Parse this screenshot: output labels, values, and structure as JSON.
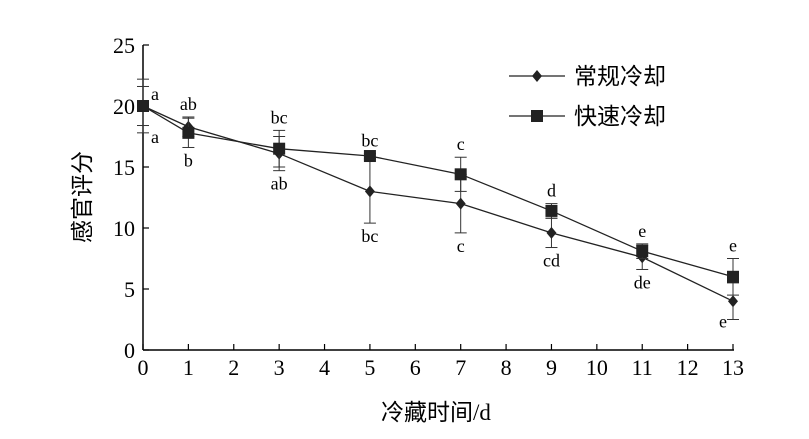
{
  "chart_data": {
    "type": "line",
    "title": "",
    "xlabel": "冷藏时间/d",
    "ylabel": "感官评分",
    "xlim": [
      0,
      13
    ],
    "ylim": [
      0,
      25
    ],
    "xticks": [
      0,
      1,
      2,
      3,
      4,
      5,
      6,
      7,
      8,
      9,
      10,
      11,
      12,
      13
    ],
    "yticks": [
      0,
      5,
      10,
      15,
      20,
      25
    ],
    "grid": false,
    "legend_position": "top-right",
    "x": [
      0,
      1,
      3,
      5,
      7,
      9,
      11,
      13
    ],
    "series": [
      {
        "name": "常规冷却",
        "marker": "diamond",
        "values": [
          20.0,
          18.3,
          16.1,
          13.0,
          12.0,
          9.6,
          7.6,
          4.0
        ],
        "error": [
          2.2,
          0.8,
          1.4,
          2.6,
          2.4,
          1.2,
          1.0,
          1.5
        ],
        "letters": [
          "a",
          "ab",
          "ab",
          "bc",
          "c",
          "cd",
          "de",
          "e"
        ],
        "letter_side": [
          "below",
          "above",
          "below",
          "below",
          "below",
          "below",
          "below",
          "below"
        ]
      },
      {
        "name": "快速冷却",
        "marker": "square",
        "values": [
          20.0,
          17.8,
          16.5,
          15.9,
          14.4,
          11.4,
          8.1,
          6.0
        ],
        "error": [
          1.6,
          1.2,
          1.5,
          0.2,
          1.4,
          0.6,
          0.6,
          1.5
        ],
        "letters": [
          "a",
          "b",
          "bc",
          "bc",
          "c",
          "d",
          "e",
          "e"
        ],
        "letter_side": [
          "above",
          "below",
          "above",
          "above",
          "above",
          "above",
          "above",
          "above"
        ]
      }
    ]
  }
}
